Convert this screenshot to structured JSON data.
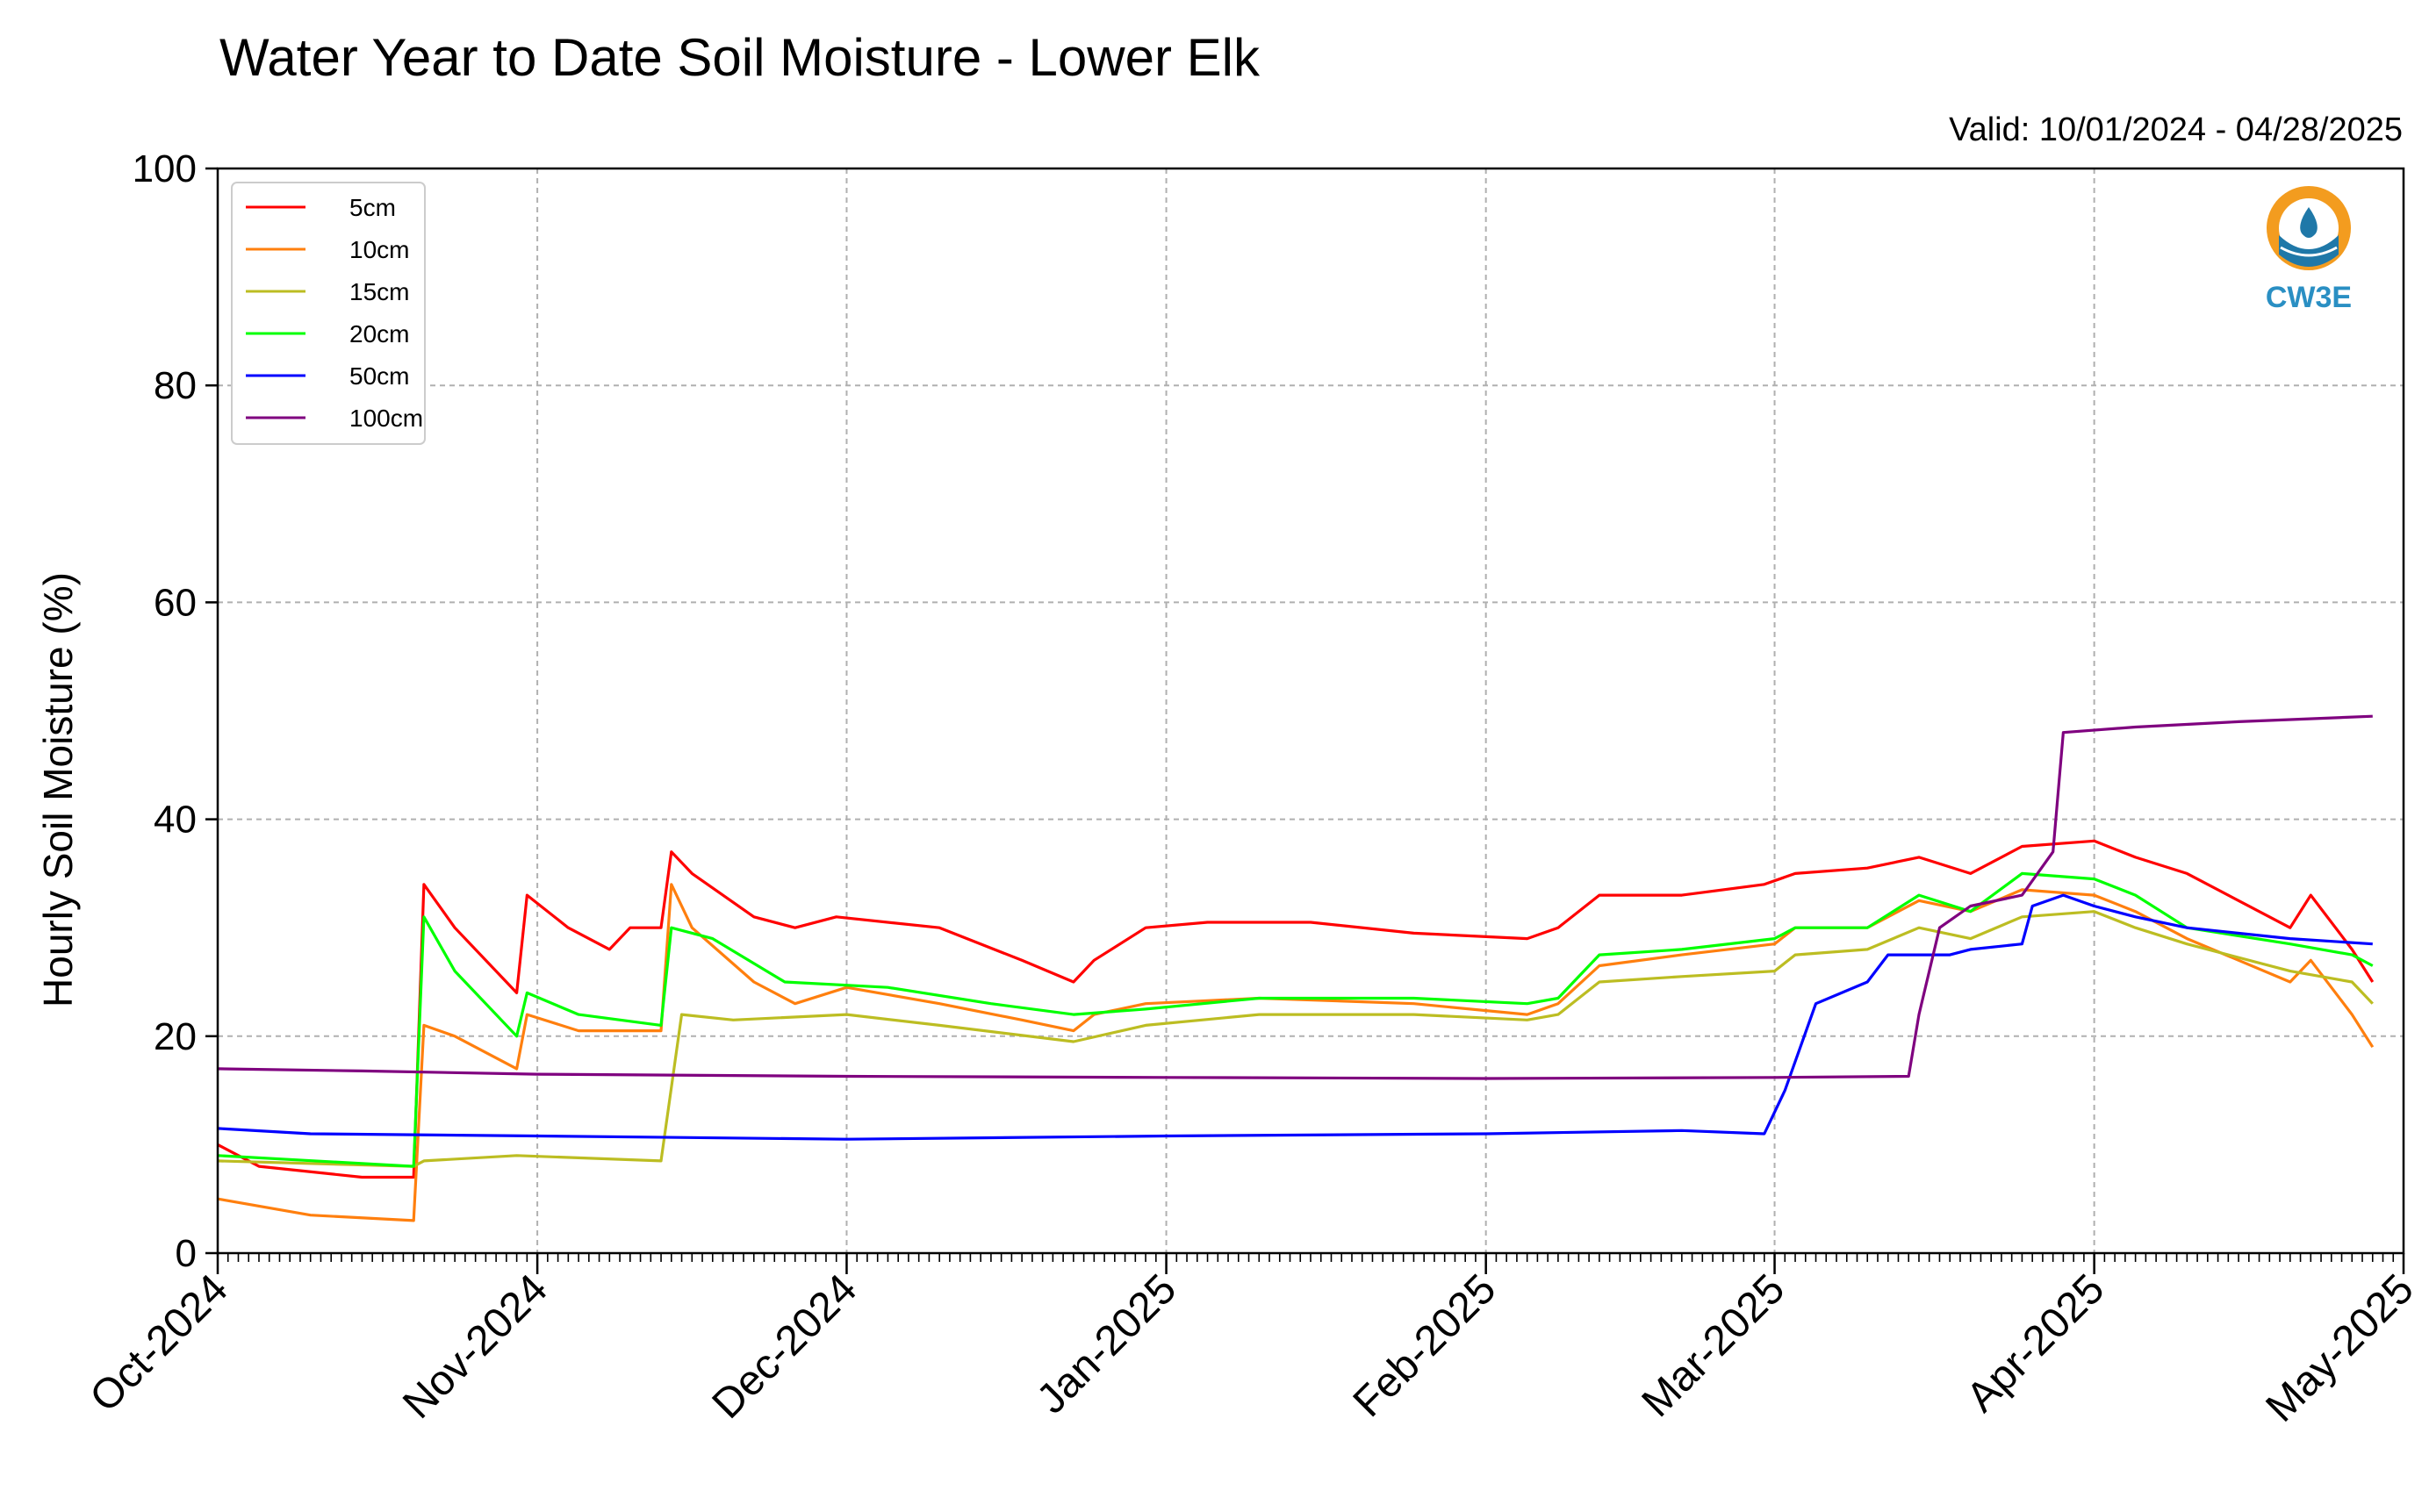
{
  "chart_data": {
    "type": "line",
    "title": "Water Year to Date Soil Moisture - Lower Elk",
    "subtitle": "Valid: 10/01/2024 - 04/28/2025",
    "xlabel": "",
    "ylabel": "Hourly Soil Moisture (%)",
    "xlim": [
      "2024-10-01",
      "2025-05-01"
    ],
    "ylim": [
      0,
      100
    ],
    "yticks": [
      0,
      20,
      40,
      60,
      80,
      100
    ],
    "xticks": [
      {
        "date": "2024-10-01",
        "label": "Oct-2024"
      },
      {
        "date": "2024-11-01",
        "label": "Nov-2024"
      },
      {
        "date": "2024-12-01",
        "label": "Dec-2024"
      },
      {
        "date": "2025-01-01",
        "label": "Jan-2025"
      },
      {
        "date": "2025-02-01",
        "label": "Feb-2025"
      },
      {
        "date": "2025-03-01",
        "label": "Mar-2025"
      },
      {
        "date": "2025-04-01",
        "label": "Apr-2025"
      },
      {
        "date": "2025-05-01",
        "label": "May-2025"
      }
    ],
    "grid": true,
    "legend_position": "top-left",
    "series": [
      {
        "name": "5cm",
        "color": "#ff0000",
        "points": [
          [
            "2024-10-01",
            10
          ],
          [
            "2024-10-05",
            8
          ],
          [
            "2024-10-15",
            7
          ],
          [
            "2024-10-20",
            7
          ],
          [
            "2024-10-21",
            34
          ],
          [
            "2024-10-24",
            30
          ],
          [
            "2024-10-30",
            24
          ],
          [
            "2024-10-31",
            33
          ],
          [
            "2024-11-04",
            30
          ],
          [
            "2024-11-08",
            28
          ],
          [
            "2024-11-10",
            30
          ],
          [
            "2024-11-13",
            30
          ],
          [
            "2024-11-14",
            37
          ],
          [
            "2024-11-16",
            35
          ],
          [
            "2024-11-22",
            31
          ],
          [
            "2024-11-26",
            30
          ],
          [
            "2024-11-30",
            31
          ],
          [
            "2024-12-10",
            30
          ],
          [
            "2024-12-18",
            27
          ],
          [
            "2024-12-23",
            25
          ],
          [
            "2024-12-25",
            27
          ],
          [
            "2024-12-30",
            30
          ],
          [
            "2025-01-05",
            30.5
          ],
          [
            "2025-01-15",
            30.5
          ],
          [
            "2025-01-25",
            29.5
          ],
          [
            "2025-02-05",
            29
          ],
          [
            "2025-02-08",
            30
          ],
          [
            "2025-02-12",
            33
          ],
          [
            "2025-02-20",
            33
          ],
          [
            "2025-02-28",
            34
          ],
          [
            "2025-03-03",
            35
          ],
          [
            "2025-03-10",
            35.5
          ],
          [
            "2025-03-15",
            36.5
          ],
          [
            "2025-03-20",
            35
          ],
          [
            "2025-03-25",
            37.5
          ],
          [
            "2025-04-01",
            38
          ],
          [
            "2025-04-05",
            36.5
          ],
          [
            "2025-04-10",
            35
          ],
          [
            "2025-04-20",
            30
          ],
          [
            "2025-04-22",
            33
          ],
          [
            "2025-04-26",
            28
          ],
          [
            "2025-04-28",
            25
          ]
        ]
      },
      {
        "name": "10cm",
        "color": "#ff7f0e",
        "points": [
          [
            "2024-10-01",
            5
          ],
          [
            "2024-10-10",
            3.5
          ],
          [
            "2024-10-20",
            3
          ],
          [
            "2024-10-21",
            21
          ],
          [
            "2024-10-24",
            20
          ],
          [
            "2024-10-30",
            17
          ],
          [
            "2024-10-31",
            22
          ],
          [
            "2024-11-05",
            20.5
          ],
          [
            "2024-11-13",
            20.5
          ],
          [
            "2024-11-14",
            34
          ],
          [
            "2024-11-16",
            30
          ],
          [
            "2024-11-22",
            25
          ],
          [
            "2024-11-26",
            23
          ],
          [
            "2024-12-01",
            24.5
          ],
          [
            "2024-12-10",
            23
          ],
          [
            "2024-12-18",
            21.5
          ],
          [
            "2024-12-23",
            20.5
          ],
          [
            "2024-12-25",
            22
          ],
          [
            "2024-12-30",
            23
          ],
          [
            "2025-01-10",
            23.5
          ],
          [
            "2025-01-25",
            23
          ],
          [
            "2025-02-05",
            22
          ],
          [
            "2025-02-08",
            23
          ],
          [
            "2025-02-12",
            26.5
          ],
          [
            "2025-02-20",
            27.5
          ],
          [
            "2025-03-01",
            28.5
          ],
          [
            "2025-03-03",
            30
          ],
          [
            "2025-03-10",
            30
          ],
          [
            "2025-03-15",
            32.5
          ],
          [
            "2025-03-20",
            31.5
          ],
          [
            "2025-03-25",
            33.5
          ],
          [
            "2025-04-01",
            33
          ],
          [
            "2025-04-05",
            31.5
          ],
          [
            "2025-04-10",
            29
          ],
          [
            "2025-04-20",
            25
          ],
          [
            "2025-04-22",
            27
          ],
          [
            "2025-04-26",
            22
          ],
          [
            "2025-04-28",
            19
          ]
        ]
      },
      {
        "name": "15cm",
        "color": "#bcbd22",
        "points": [
          [
            "2024-10-01",
            8.5
          ],
          [
            "2024-10-20",
            8
          ],
          [
            "2024-10-21",
            8.5
          ],
          [
            "2024-10-30",
            9
          ],
          [
            "2024-11-13",
            8.5
          ],
          [
            "2024-11-15",
            22
          ],
          [
            "2024-11-20",
            21.5
          ],
          [
            "2024-12-01",
            22
          ],
          [
            "2024-12-10",
            21
          ],
          [
            "2024-12-23",
            19.5
          ],
          [
            "2024-12-30",
            21
          ],
          [
            "2025-01-10",
            22
          ],
          [
            "2025-01-25",
            22
          ],
          [
            "2025-02-05",
            21.5
          ],
          [
            "2025-02-08",
            22
          ],
          [
            "2025-02-12",
            25
          ],
          [
            "2025-02-20",
            25.5
          ],
          [
            "2025-03-01",
            26
          ],
          [
            "2025-03-03",
            27.5
          ],
          [
            "2025-03-10",
            28
          ],
          [
            "2025-03-15",
            30
          ],
          [
            "2025-03-20",
            29
          ],
          [
            "2025-03-25",
            31
          ],
          [
            "2025-04-01",
            31.5
          ],
          [
            "2025-04-05",
            30
          ],
          [
            "2025-04-10",
            28.5
          ],
          [
            "2025-04-20",
            26
          ],
          [
            "2025-04-26",
            25
          ],
          [
            "2025-04-28",
            23
          ]
        ]
      },
      {
        "name": "20cm",
        "color": "#00ff00",
        "points": [
          [
            "2024-10-01",
            9
          ],
          [
            "2024-10-20",
            8
          ],
          [
            "2024-10-21",
            31
          ],
          [
            "2024-10-24",
            26
          ],
          [
            "2024-10-30",
            20
          ],
          [
            "2024-10-31",
            24
          ],
          [
            "2024-11-05",
            22
          ],
          [
            "2024-11-13",
            21
          ],
          [
            "2024-11-14",
            30
          ],
          [
            "2024-11-18",
            29
          ],
          [
            "2024-11-25",
            25
          ],
          [
            "2024-12-05",
            24.5
          ],
          [
            "2024-12-15",
            23
          ],
          [
            "2024-12-23",
            22
          ],
          [
            "2024-12-30",
            22.5
          ],
          [
            "2025-01-10",
            23.5
          ],
          [
            "2025-01-25",
            23.5
          ],
          [
            "2025-02-05",
            23
          ],
          [
            "2025-02-08",
            23.5
          ],
          [
            "2025-02-12",
            27.5
          ],
          [
            "2025-02-20",
            28
          ],
          [
            "2025-03-01",
            29
          ],
          [
            "2025-03-03",
            30
          ],
          [
            "2025-03-10",
            30
          ],
          [
            "2025-03-15",
            33
          ],
          [
            "2025-03-20",
            31.5
          ],
          [
            "2025-03-25",
            35
          ],
          [
            "2025-04-01",
            34.5
          ],
          [
            "2025-04-05",
            33
          ],
          [
            "2025-04-10",
            30
          ],
          [
            "2025-04-20",
            28.5
          ],
          [
            "2025-04-26",
            27.5
          ],
          [
            "2025-04-28",
            26.5
          ]
        ]
      },
      {
        "name": "50cm",
        "color": "#0000ff",
        "points": [
          [
            "2024-10-01",
            11.5
          ],
          [
            "2024-10-10",
            11
          ],
          [
            "2024-11-01",
            10.8
          ],
          [
            "2024-12-01",
            10.5
          ],
          [
            "2025-01-01",
            10.8
          ],
          [
            "2025-02-01",
            11
          ],
          [
            "2025-02-20",
            11.3
          ],
          [
            "2025-02-28",
            11
          ],
          [
            "2025-03-02",
            15
          ],
          [
            "2025-03-05",
            23
          ],
          [
            "2025-03-10",
            25
          ],
          [
            "2025-03-12",
            27.5
          ],
          [
            "2025-03-18",
            27.5
          ],
          [
            "2025-03-20",
            28
          ],
          [
            "2025-03-25",
            28.5
          ],
          [
            "2025-03-26",
            32
          ],
          [
            "2025-03-29",
            33
          ],
          [
            "2025-04-01",
            32
          ],
          [
            "2025-04-05",
            31
          ],
          [
            "2025-04-10",
            30
          ],
          [
            "2025-04-20",
            29
          ],
          [
            "2025-04-28",
            28.5
          ]
        ]
      },
      {
        "name": "100cm",
        "color": "#7f007f",
        "points": [
          [
            "2024-10-01",
            17
          ],
          [
            "2024-10-15",
            16.8
          ],
          [
            "2024-11-01",
            16.5
          ],
          [
            "2024-12-01",
            16.3
          ],
          [
            "2025-01-01",
            16.2
          ],
          [
            "2025-02-01",
            16.1
          ],
          [
            "2025-03-01",
            16.2
          ],
          [
            "2025-03-14",
            16.3
          ],
          [
            "2025-03-15",
            22
          ],
          [
            "2025-03-17",
            30
          ],
          [
            "2025-03-20",
            32
          ],
          [
            "2025-03-25",
            33
          ],
          [
            "2025-03-28",
            37
          ],
          [
            "2025-03-29",
            48
          ],
          [
            "2025-04-05",
            48.5
          ],
          [
            "2025-04-15",
            49
          ],
          [
            "2025-04-28",
            49.5
          ]
        ]
      }
    ]
  },
  "logo": {
    "text": "CW3E",
    "colors": {
      "orange": "#f39c1f",
      "blue": "#1f78a8",
      "text": "#2a8fc3"
    }
  }
}
